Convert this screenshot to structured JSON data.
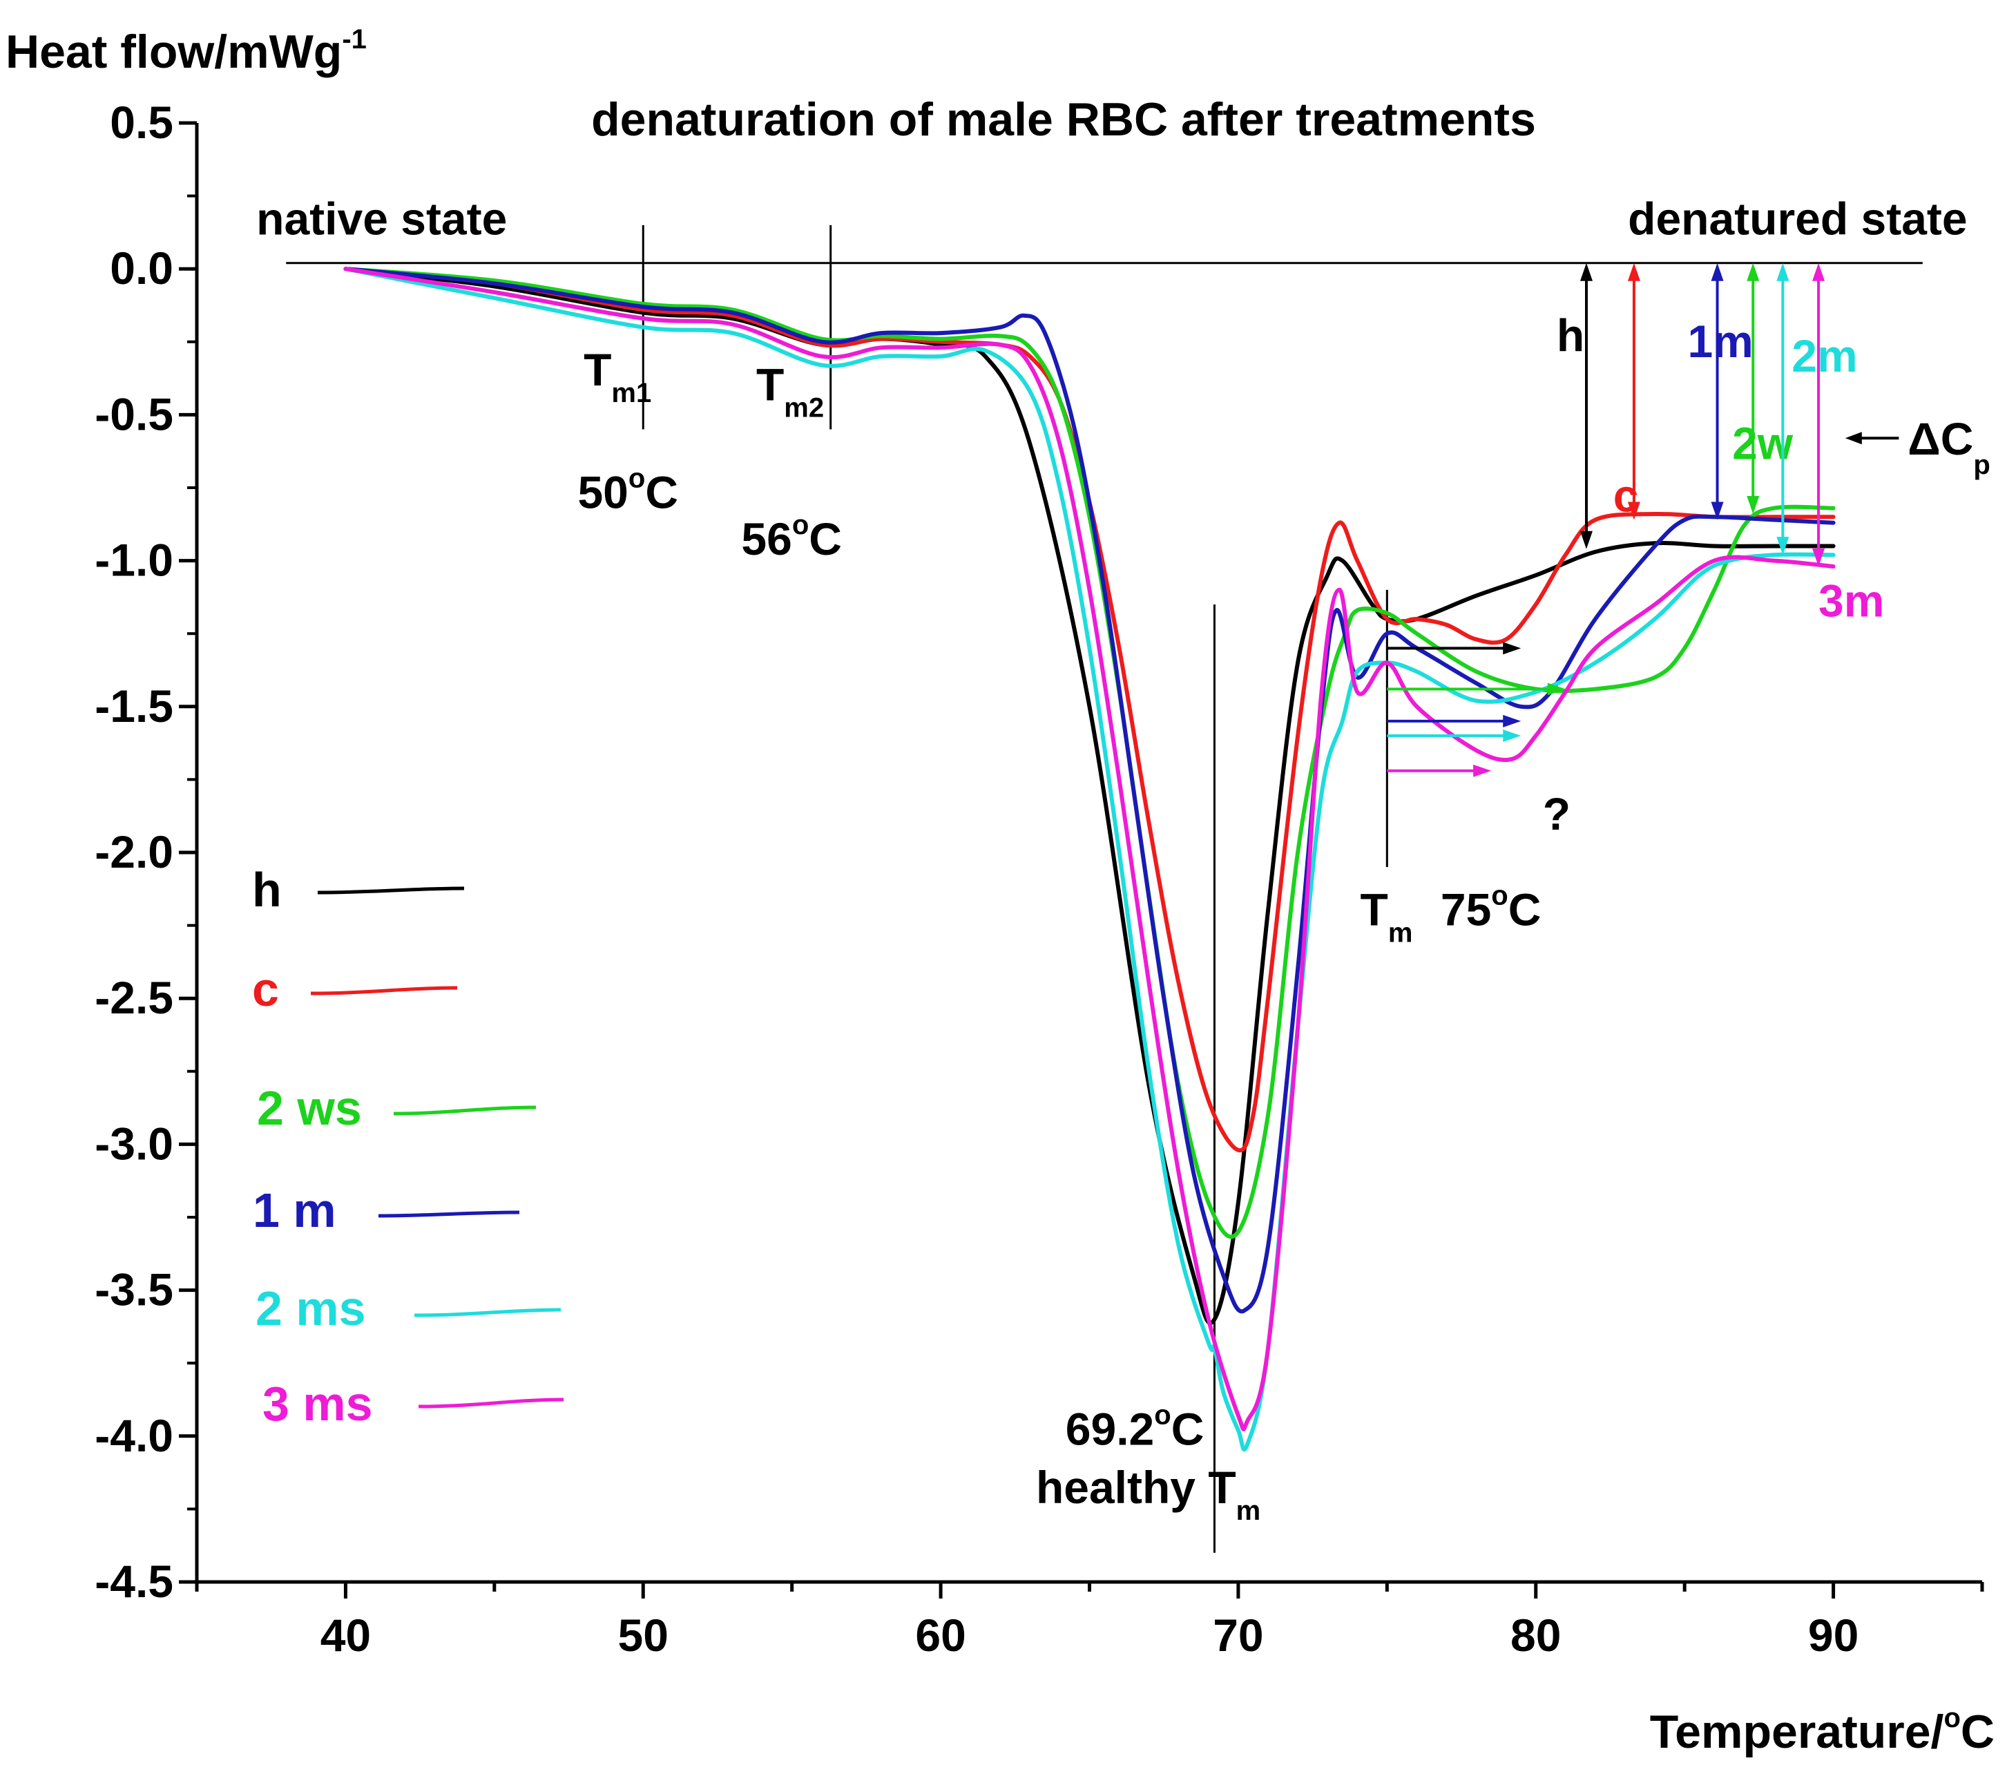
{
  "chart_data": {
    "type": "line",
    "title": "denaturation of male RBC after treatments",
    "ylabel": {
      "text": "Heat flow/mWg",
      "sup": "-1"
    },
    "xlabel": {
      "text": "Temperature/",
      "sup": "o",
      "unit": "C"
    },
    "xlim": [
      35,
      95
    ],
    "ylim": [
      -4.5,
      0.5
    ],
    "xticks": [
      40,
      50,
      60,
      70,
      80,
      90
    ],
    "xtick_labels": [
      "40",
      "50",
      "60",
      "70",
      "80",
      "90"
    ],
    "yticks": [
      0.5,
      0.0,
      -0.5,
      -1.0,
      -1.5,
      -2.0,
      -2.5,
      -3.0,
      -3.5,
      -4.0,
      -4.5
    ],
    "ytick_labels": [
      "0.5",
      "0.0",
      "-0.5",
      "-1.0",
      "-1.5",
      "-2.0",
      "-2.5",
      "-3.0",
      "-3.5",
      "-4.0",
      "-4.5"
    ],
    "series": [
      {
        "name": "h",
        "legend": "h",
        "color": "#000000",
        "x": [
          40,
          45,
          50,
          53,
          56,
          58,
          60,
          61.5,
          63,
          65,
          67,
          68.5,
          69.2,
          70,
          71,
          72,
          73,
          73.5,
          74.5,
          75,
          76,
          78,
          80,
          82,
          84,
          86,
          88,
          90
        ],
        "y": [
          0,
          -0.06,
          -0.15,
          -0.17,
          -0.26,
          -0.24,
          -0.26,
          -0.3,
          -0.6,
          -1.5,
          -2.8,
          -3.45,
          -3.6,
          -3.2,
          -2.2,
          -1.35,
          -1.05,
          -1.0,
          -1.15,
          -1.2,
          -1.2,
          -1.12,
          -1.05,
          -0.97,
          -0.94,
          -0.95,
          -0.95,
          -0.95
        ]
      },
      {
        "name": "c",
        "legend": "c",
        "color": "#ee1c1c",
        "x": [
          40,
          45,
          50,
          53,
          56,
          58,
          60,
          62,
          63,
          64,
          65,
          66,
          67,
          68,
          69,
          70,
          70.5,
          71,
          72,
          72.8,
          73.4,
          74,
          75,
          76,
          77,
          78,
          79,
          80,
          81,
          82,
          84,
          86,
          88,
          90
        ],
        "y": [
          0,
          -0.05,
          -0.14,
          -0.16,
          -0.26,
          -0.24,
          -0.25,
          -0.26,
          -0.3,
          -0.45,
          -0.8,
          -1.3,
          -1.9,
          -2.45,
          -2.85,
          -3.02,
          -2.9,
          -2.5,
          -1.6,
          -1.05,
          -0.87,
          -1.0,
          -1.2,
          -1.2,
          -1.22,
          -1.27,
          -1.27,
          -1.15,
          -0.98,
          -0.86,
          -0.84,
          -0.85,
          -0.85,
          -0.85
        ]
      },
      {
        "name": "2 ws",
        "legend": "2 ws",
        "color": "#1cd21c",
        "x": [
          40,
          45,
          50,
          53,
          56,
          58,
          60,
          62,
          63,
          64,
          65,
          66,
          67,
          68,
          69,
          70,
          71,
          72,
          73,
          73.6,
          74,
          75,
          76,
          78,
          80,
          82,
          84,
          85,
          86,
          87,
          88,
          90
        ],
        "y": [
          0,
          -0.04,
          -0.12,
          -0.14,
          -0.24,
          -0.23,
          -0.24,
          -0.23,
          -0.27,
          -0.45,
          -0.85,
          -1.45,
          -2.15,
          -2.8,
          -3.2,
          -3.3,
          -2.9,
          -2.0,
          -1.45,
          -1.25,
          -1.17,
          -1.18,
          -1.25,
          -1.38,
          -1.44,
          -1.44,
          -1.4,
          -1.3,
          -1.1,
          -0.88,
          -0.82,
          -0.82
        ]
      },
      {
        "name": "1 m",
        "legend": "1 m",
        "color": "#1a1ab4",
        "x": [
          40,
          45,
          50,
          53,
          56,
          58,
          60,
          62,
          62.8,
          63.5,
          64.5,
          65.5,
          66.5,
          67.5,
          68.5,
          69.5,
          70.2,
          71,
          72,
          72.8,
          73.3,
          74,
          75,
          76,
          78,
          79.5,
          80.5,
          82,
          84,
          85,
          86,
          88,
          90
        ],
        "y": [
          0,
          -0.05,
          -0.13,
          -0.15,
          -0.25,
          -0.22,
          -0.22,
          -0.2,
          -0.16,
          -0.22,
          -0.55,
          -1.1,
          -1.8,
          -2.5,
          -3.1,
          -3.45,
          -3.57,
          -3.35,
          -2.4,
          -1.5,
          -1.17,
          -1.4,
          -1.25,
          -1.3,
          -1.42,
          -1.5,
          -1.45,
          -1.2,
          -0.95,
          -0.86,
          -0.85,
          -0.86,
          -0.87
        ]
      },
      {
        "name": "2 ms",
        "legend": "2 ms",
        "color": "#1edcdc",
        "x": [
          40,
          45,
          50,
          53,
          56,
          58,
          60,
          61.5,
          63,
          64,
          65,
          66,
          67,
          68,
          69,
          69.2,
          69.5,
          70,
          70.3,
          71,
          72,
          72.8,
          73.5,
          74,
          75,
          76,
          78,
          80,
          82,
          84,
          85.5,
          86.5,
          88,
          90
        ],
        "y": [
          0,
          -0.1,
          -0.2,
          -0.22,
          -0.33,
          -0.3,
          -0.3,
          -0.28,
          -0.42,
          -0.75,
          -1.3,
          -2.0,
          -2.75,
          -3.35,
          -3.68,
          -3.7,
          -3.85,
          -3.98,
          -4.03,
          -3.7,
          -2.6,
          -1.8,
          -1.55,
          -1.38,
          -1.35,
          -1.38,
          -1.48,
          -1.45,
          -1.35,
          -1.2,
          -1.05,
          -1.0,
          -0.98,
          -0.98
        ]
      },
      {
        "name": "3 ms",
        "legend": "3 ms",
        "color": "#ee1cd6",
        "x": [
          40,
          45,
          50,
          53,
          56,
          58,
          60,
          62,
          63,
          64,
          65,
          66,
          67,
          68,
          69,
          70,
          70.3,
          71,
          72,
          72.8,
          73.4,
          74,
          75,
          76,
          78,
          79.2,
          80,
          81,
          82,
          84,
          86,
          88,
          90
        ],
        "y": [
          0,
          -0.08,
          -0.17,
          -0.19,
          -0.3,
          -0.27,
          -0.27,
          -0.26,
          -0.33,
          -0.6,
          -1.1,
          -1.75,
          -2.45,
          -3.1,
          -3.6,
          -3.93,
          -3.95,
          -3.7,
          -2.6,
          -1.45,
          -1.1,
          -1.45,
          -1.35,
          -1.5,
          -1.65,
          -1.68,
          -1.6,
          -1.45,
          -1.3,
          -1.15,
          -1.0,
          -1.0,
          -1.02
        ]
      }
    ],
    "baseline": {
      "x": [
        38,
        93
      ],
      "y": [
        0.02,
        0.02
      ]
    },
    "vlines": [
      {
        "x": 50,
        "y": [
          -0.55,
          0.15
        ],
        "label": "T",
        "sub": "m1",
        "value": "50",
        "deg": "o",
        "unit": "C"
      },
      {
        "x": 56.3,
        "y": [
          -0.55,
          0.15
        ],
        "label": "T",
        "sub": "m2",
        "value": "56",
        "deg": "o",
        "unit": "C"
      },
      {
        "x": 69.2,
        "y": [
          -4.4,
          -1.15
        ],
        "label": "healthy T",
        "sub": "m",
        "value": "69.2",
        "deg": "o",
        "unit": "C"
      },
      {
        "x": 75,
        "y": [
          -2.05,
          -1.1
        ],
        "label": "T",
        "sub": "m",
        "value": "75",
        "deg": "o",
        "unit": "C"
      }
    ],
    "region_labels": [
      {
        "text": "native state",
        "x": 37,
        "y": 0.17,
        "anchor": "start"
      },
      {
        "text": "denatured state",
        "x": 88.8,
        "y": 0.17,
        "anchor": "middle"
      }
    ],
    "delta_cp_arrows": [
      {
        "name": "h",
        "x": 81.7,
        "y_top": 0.02,
        "y_bottom": -0.96,
        "color": "#000000",
        "label": "h",
        "lx": 80.7,
        "ly": -0.23
      },
      {
        "name": "c",
        "x": 83.3,
        "y_top": 0.02,
        "y_bottom": -0.86,
        "color": "#ee1c1c",
        "label": "c",
        "lx": 82.6,
        "ly": -0.78
      },
      {
        "name": "1m",
        "x": 86.1,
        "y_top": 0.02,
        "y_bottom": -0.86,
        "color": "#1a1ab4",
        "label": "1m",
        "lx": 85.1,
        "ly": -0.25
      },
      {
        "name": "2w",
        "x": 87.3,
        "y_top": 0.02,
        "y_bottom": -0.84,
        "color": "#1cd21c",
        "label": "2w",
        "lx": 86.6,
        "ly": -0.6
      },
      {
        "name": "2m",
        "x": 88.3,
        "y_top": 0.02,
        "y_bottom": -0.98,
        "color": "#1edcdc",
        "label": "2m",
        "lx": 88.6,
        "ly": -0.3
      },
      {
        "name": "3m",
        "x": 89.5,
        "y_top": 0.02,
        "y_bottom": -1.02,
        "color": "#ee1cd6",
        "label": "3m",
        "lx": 89.5,
        "ly": -1.14
      }
    ],
    "delta_cp_label": {
      "text": "ΔC",
      "sub": "p"
    },
    "plateau_arrows": [
      {
        "color": "#000000",
        "y": -1.3,
        "x1": 75,
        "x2": 79.5
      },
      {
        "color": "#1cd21c",
        "y": -1.44,
        "x1": 75,
        "x2": 81
      },
      {
        "color": "#1a1ab4",
        "y": -1.55,
        "x1": 75,
        "x2": 79.5
      },
      {
        "color": "#1edcdc",
        "y": -1.6,
        "x1": 75,
        "x2": 79.5
      },
      {
        "color": "#ee1cd6",
        "y": -1.72,
        "x1": 75,
        "x2": 78.5
      }
    ],
    "question_mark": {
      "text": "?",
      "x": 80.7,
      "y": -1.87
    }
  }
}
